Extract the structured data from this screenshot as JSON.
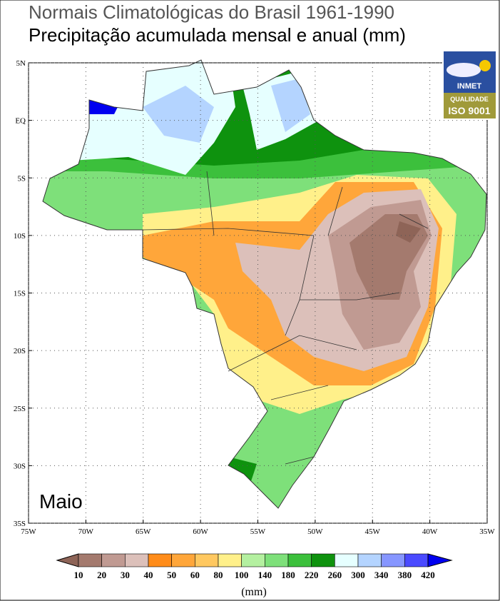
{
  "header": {
    "title": "Normais Climatológicas do Brasil 1961-1990",
    "subtitle": "Precipitação acumulada mensal e anual (mm)"
  },
  "logo": {
    "name": "INMET",
    "quality": "QUALIDADE",
    "certification": "ISO 9001"
  },
  "map": {
    "month": "Maio",
    "xlim": [
      -75,
      -35
    ],
    "ylim": [
      -35,
      5
    ],
    "xticks": [
      {
        "value": -75,
        "label": "75W"
      },
      {
        "value": -70,
        "label": "70W"
      },
      {
        "value": -65,
        "label": "65W"
      },
      {
        "value": -60,
        "label": "60W"
      },
      {
        "value": -55,
        "label": "55W"
      },
      {
        "value": -50,
        "label": "50W"
      },
      {
        "value": -45,
        "label": "45W"
      },
      {
        "value": -40,
        "label": "40W"
      },
      {
        "value": -35,
        "label": "35W"
      }
    ],
    "yticks": [
      {
        "value": 5,
        "label": "5N"
      },
      {
        "value": 0,
        "label": "EQ"
      },
      {
        "value": -5,
        "label": "5S"
      },
      {
        "value": -10,
        "label": "10S"
      },
      {
        "value": -15,
        "label": "15S"
      },
      {
        "value": -20,
        "label": "20S"
      },
      {
        "value": -25,
        "label": "25S"
      },
      {
        "value": -30,
        "label": "30S"
      },
      {
        "value": -35,
        "label": "35S"
      }
    ],
    "grid": true
  },
  "colorbar": {
    "bounds": [
      10,
      20,
      30,
      40,
      50,
      60,
      80,
      100,
      140,
      180,
      220,
      260,
      300,
      340,
      380,
      420
    ],
    "colors": [
      "#8e6457",
      "#a47a6e",
      "#c09a92",
      "#dcc0ba",
      "#ff8c1a",
      "#ffa63a",
      "#ffc860",
      "#fff08a",
      "#b4f0a0",
      "#7ee07a",
      "#3cc03c",
      "#0e920e",
      "#e6ffff",
      "#b4d4ff",
      "#8696ff",
      "#4a4aff",
      "#0000f0"
    ],
    "unit": "(mm)"
  }
}
